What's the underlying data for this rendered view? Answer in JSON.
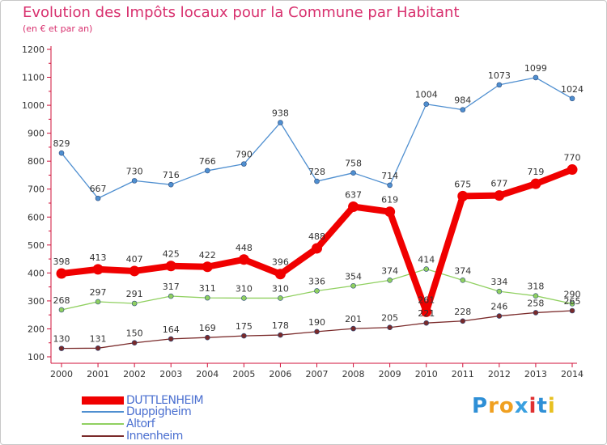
{
  "chart_data": {
    "type": "line",
    "title": "Evolution des Impôts locaux pour la Commune par Habitant",
    "subtitle": "(en € et par an)",
    "xlabel": "",
    "ylabel": "",
    "x": [
      "2000",
      "2001",
      "2002",
      "2003",
      "2004",
      "2005",
      "2006",
      "2007",
      "2008",
      "2009",
      "2010",
      "2011",
      "2012",
      "2013",
      "2014"
    ],
    "ylim": [
      100,
      1200
    ],
    "yticks": [
      "100",
      "200",
      "300",
      "400",
      "500",
      "600",
      "700",
      "800",
      "900",
      "1000",
      "1100",
      "1200"
    ],
    "grid": false,
    "legend_position": "bottom-left",
    "series": [
      {
        "name": "DUTTLENHEIM",
        "color": "#f00000",
        "values": [
          398,
          413,
          407,
          425,
          422,
          448,
          396,
          488,
          637,
          619,
          261,
          675,
          677,
          719,
          770
        ],
        "labels": [
          "398",
          "413",
          "407",
          "425",
          "422",
          "448",
          "396",
          "488",
          "637",
          "619",
          "261",
          "675",
          "677",
          "719",
          "770"
        ]
      },
      {
        "name": "Duppigheim",
        "color": "#4f8fd0",
        "values": [
          829,
          667,
          730,
          716,
          766,
          790,
          938,
          728,
          758,
          714,
          1004,
          984,
          1073,
          1099,
          1024
        ],
        "labels": [
          "829",
          "667",
          "730",
          "716",
          "766",
          "790",
          "938",
          "728",
          "758",
          "714",
          "1004",
          "984",
          "1073",
          "1099",
          "1024"
        ]
      },
      {
        "name": "Altorf",
        "color": "#90d060",
        "values": [
          268,
          297,
          291,
          317,
          311,
          310,
          310,
          336,
          354,
          374,
          414,
          374,
          334,
          318,
          290
        ],
        "labels": [
          "268",
          "297",
          "291",
          "317",
          "311",
          "310",
          "310",
          "336",
          "354",
          "374",
          "414",
          "374",
          "334",
          "318",
          "290"
        ]
      },
      {
        "name": "Innenheim",
        "color": "#7a2a2a",
        "values": [
          130,
          131,
          150,
          164,
          169,
          175,
          178,
          190,
          201,
          205,
          221,
          228,
          246,
          258,
          265
        ],
        "labels": [
          "130",
          "131",
          "150",
          "164",
          "169",
          "175",
          "178",
          "190",
          "201",
          "205",
          "221",
          "228",
          "246",
          "258",
          "265"
        ]
      }
    ]
  },
  "legend": {
    "items": [
      {
        "name": "DUTTLENHEIM",
        "color": "#f00000"
      },
      {
        "name": "Duppigheim",
        "color": "#4f8fd0"
      },
      {
        "name": "Altorf",
        "color": "#90d060"
      },
      {
        "name": "Innenheim",
        "color": "#7a2a2a"
      }
    ]
  },
  "logo": {
    "letters": [
      "P",
      "r",
      "o",
      "x",
      "i",
      "t",
      "i"
    ],
    "colors": [
      "#2e8fd6",
      "#f0a020",
      "#f0a020",
      "#3aa0e0",
      "#e03030",
      "#2e8fd6",
      "#e8c020"
    ]
  }
}
